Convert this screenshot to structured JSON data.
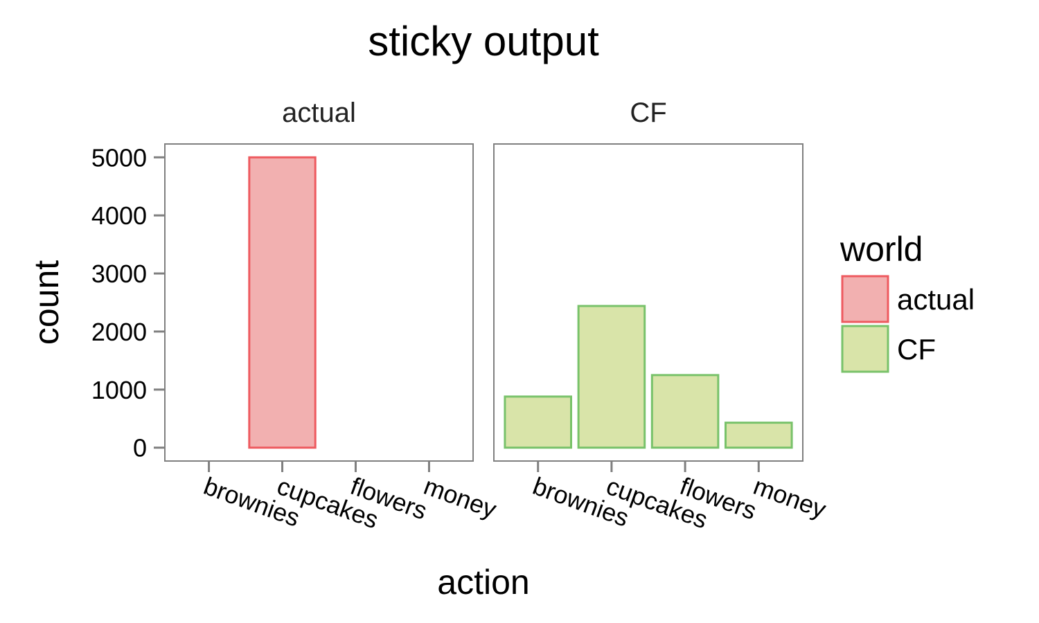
{
  "chart_data": {
    "type": "bar",
    "title": "sticky output",
    "xlabel": "action",
    "ylabel": "count",
    "categories": [
      "brownies",
      "cupcakes",
      "flowers",
      "money"
    ],
    "ylim": [
      -230,
      5230
    ],
    "yticks": [
      0,
      1000,
      2000,
      3000,
      4000,
      5000
    ],
    "grid": false,
    "facets": [
      {
        "label": "actual",
        "series": "actual",
        "values": [
          0,
          5000,
          0,
          0
        ]
      },
      {
        "label": "CF",
        "series": "CF",
        "values": [
          880,
          2440,
          1250,
          430
        ]
      }
    ],
    "legend": {
      "title": "world",
      "placement": "right",
      "items": [
        {
          "label": "actual",
          "fill": "#f2b0b0",
          "stroke": "#ee5a5f"
        },
        {
          "label": "CF",
          "fill": "#d9e4a9",
          "stroke": "#78c26a"
        }
      ]
    }
  }
}
